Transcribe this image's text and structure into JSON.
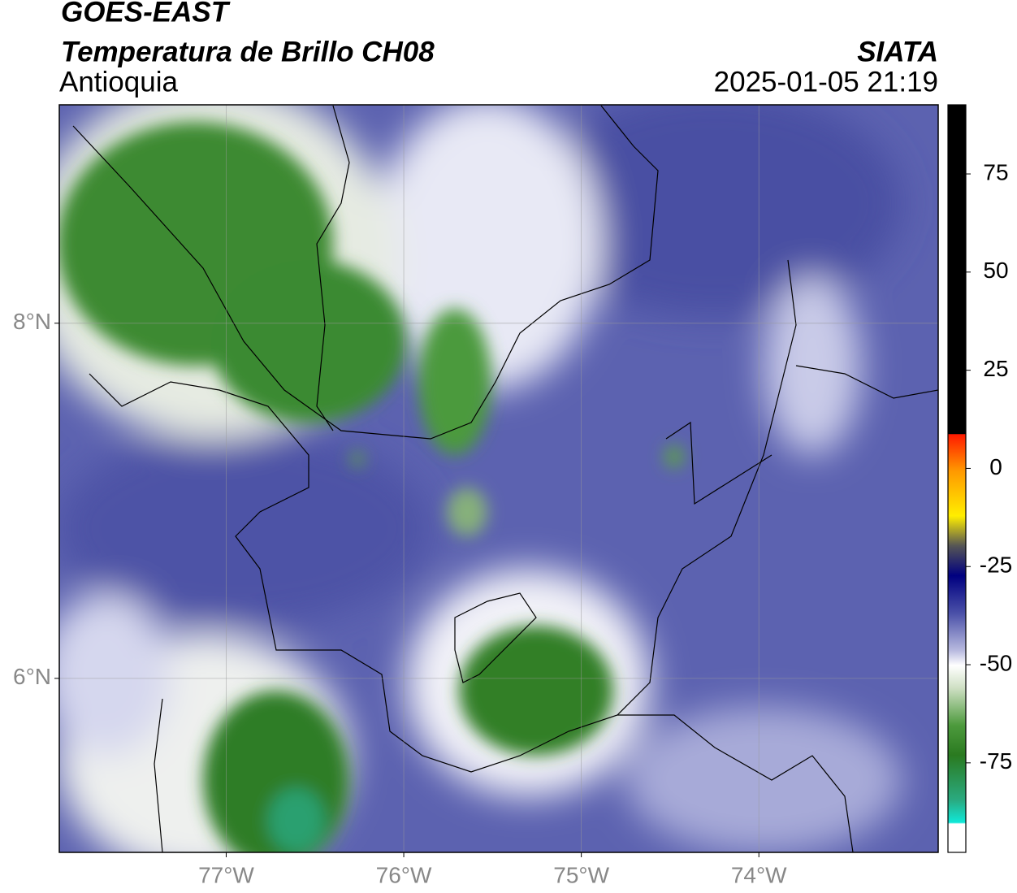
{
  "header": {
    "title": "GOES-EAST",
    "subtitle": "Temperatura de Brillo CH08",
    "region": "Antioquia",
    "source": "SIATA",
    "datetime": "2025-01-05 21:19"
  },
  "map": {
    "xlim": [
      -77.94,
      -72.99
    ],
    "ylim": [
      5.02,
      9.23
    ],
    "xticks": [
      {
        "value": -77,
        "label": "77°W"
      },
      {
        "value": -76,
        "label": "76°W"
      },
      {
        "value": -75,
        "label": "75°W"
      },
      {
        "value": -74,
        "label": "74°W"
      }
    ],
    "yticks": [
      {
        "value": 8,
        "label": "8°N"
      },
      {
        "value": 6,
        "label": "6°N"
      }
    ],
    "grid": true
  },
  "colorbar": {
    "clim": [
      -97.8,
      92.6
    ],
    "ticks": [
      -75,
      -50,
      -25,
      0,
      25,
      50,
      75
    ]
  }
}
